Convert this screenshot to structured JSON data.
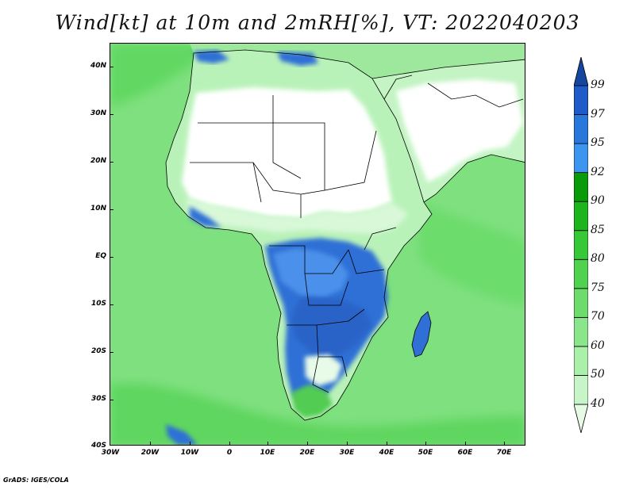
{
  "title": "Wind[kt] at 10m and 2mRH[%], VT: 2022040203",
  "credit": "GrADS: IGES/COLA",
  "map": {
    "region": "Africa",
    "lat_labels": [
      "40N",
      "30N",
      "20N",
      "10N",
      "EQ",
      "10S",
      "20S",
      "30S",
      "40S"
    ],
    "lon_labels": [
      "30W",
      "20W",
      "10W",
      "0",
      "10E",
      "20E",
      "30E",
      "40E",
      "50E",
      "60E",
      "70E"
    ]
  },
  "colorbar": {
    "levels": [
      "40",
      "50",
      "60",
      "70",
      "75",
      "80",
      "85",
      "90",
      "92",
      "95",
      "97",
      "99"
    ],
    "colors": [
      "#e6fae6",
      "#c8f5c8",
      "#aaf0aa",
      "#8be68b",
      "#6ddc6d",
      "#50d250",
      "#37c837",
      "#1eb41e",
      "#0a9b0a",
      "#3c96f0",
      "#2878dc",
      "#1e5ac8",
      "#1446a0"
    ]
  },
  "colors": {
    "ocean": "#7fe07f",
    "sahara": "#ffffff",
    "humid": "#2f6fd6",
    "border": "#000000"
  }
}
